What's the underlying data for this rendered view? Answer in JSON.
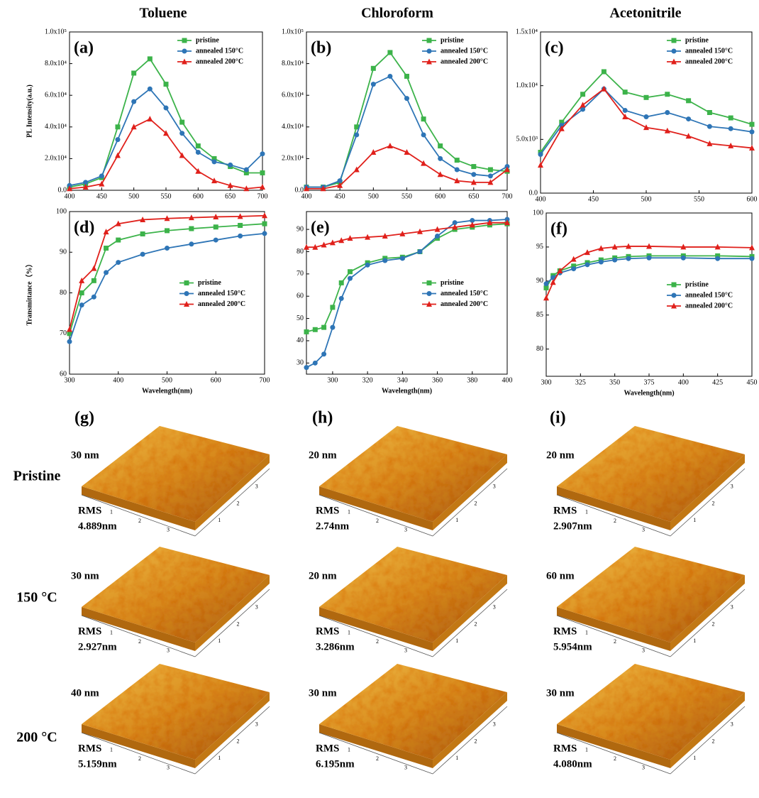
{
  "columns": [
    "Toluene",
    "Chloroform",
    "Acetonitrile"
  ],
  "chart_data": [
    {
      "type": "line",
      "label": "(a)",
      "y_label": "PL Intensity(a.u.)",
      "legend": "upper right",
      "xlim": [
        400,
        700
      ],
      "xticks": [
        400,
        450,
        500,
        550,
        600,
        650,
        700
      ],
      "ylim": [
        0,
        100000
      ],
      "yticks": [
        {
          "value": 0,
          "label": "0.0"
        },
        {
          "value": 20000,
          "label": "2.0x10⁴"
        },
        {
          "value": 40000,
          "label": "4.0x10⁴"
        },
        {
          "value": 60000,
          "label": "6.0x10⁴"
        },
        {
          "value": 80000,
          "label": "8.0x10⁴"
        },
        {
          "value": 100000,
          "label": "1.0x10⁵"
        }
      ],
      "x": [
        400,
        425,
        450,
        475,
        500,
        525,
        550,
        575,
        600,
        625,
        650,
        675,
        700
      ],
      "series": [
        {
          "name": "pristine",
          "color": "#3cb34a",
          "marker": "square",
          "values": [
            2000,
            4000,
            8000,
            40000,
            74000,
            83000,
            67000,
            43000,
            28000,
            20000,
            15000,
            11000,
            11000
          ]
        },
        {
          "name": "annealed 150°C",
          "color": "#2e75b6",
          "marker": "circle",
          "values": [
            3000,
            5000,
            9000,
            32000,
            56000,
            64000,
            52000,
            36000,
            24000,
            18000,
            16000,
            13000,
            23000
          ]
        },
        {
          "name": "annealed 200°C",
          "color": "#e0201b",
          "marker": "triangle",
          "values": [
            1000,
            2000,
            4000,
            22000,
            40000,
            45000,
            36000,
            22000,
            12000,
            6000,
            3000,
            1000,
            2000
          ]
        }
      ]
    },
    {
      "type": "line",
      "label": "(b)",
      "legend": "upper right",
      "xlim": [
        400,
        700
      ],
      "xticks": [
        400,
        450,
        500,
        550,
        600,
        650,
        700
      ],
      "ylim": [
        0,
        100000
      ],
      "yticks": [
        {
          "value": 0,
          "label": "0.0"
        },
        {
          "value": 20000,
          "label": "2.0x10⁴"
        },
        {
          "value": 40000,
          "label": "4.0x10⁴"
        },
        {
          "value": 60000,
          "label": "6.0x10⁴"
        },
        {
          "value": 80000,
          "label": "8.0x10⁴"
        },
        {
          "value": 100000,
          "label": "1.0x10⁵"
        }
      ],
      "x": [
        400,
        425,
        450,
        475,
        500,
        525,
        550,
        575,
        600,
        625,
        650,
        675,
        700
      ],
      "series": [
        {
          "name": "pristine",
          "color": "#3cb34a",
          "marker": "square",
          "values": [
            2000,
            2000,
            5000,
            40000,
            77000,
            87000,
            72000,
            45000,
            28000,
            19000,
            15000,
            13000,
            12000
          ]
        },
        {
          "name": "annealed 150°C",
          "color": "#2e75b6",
          "marker": "circle",
          "values": [
            2000,
            2000,
            6000,
            35000,
            67000,
            72000,
            58000,
            35000,
            20000,
            13000,
            10000,
            9000,
            15000
          ]
        },
        {
          "name": "annealed 200°C",
          "color": "#e0201b",
          "marker": "triangle",
          "values": [
            1000,
            1000,
            3000,
            13000,
            24000,
            28000,
            24000,
            17000,
            10000,
            6000,
            5000,
            5000,
            13000
          ]
        }
      ]
    },
    {
      "type": "line",
      "label": "(c)",
      "legend": "upper right",
      "xlim": [
        400,
        600
      ],
      "xticks": [
        400,
        450,
        500,
        550,
        600
      ],
      "ylim": [
        0,
        15000
      ],
      "yticks": [
        {
          "value": 0,
          "label": "0.0"
        },
        {
          "value": 5000,
          "label": "5.0x10³"
        },
        {
          "value": 10000,
          "label": "1.0x10⁴"
        },
        {
          "value": 15000,
          "label": "1.5x10⁴"
        }
      ],
      "x": [
        400,
        420,
        440,
        460,
        480,
        500,
        520,
        540,
        560,
        580,
        600
      ],
      "series": [
        {
          "name": "pristine",
          "color": "#3cb34a",
          "marker": "square",
          "values": [
            3800,
            6600,
            9200,
            11300,
            9400,
            8900,
            9200,
            8600,
            7500,
            7000,
            6400
          ]
        },
        {
          "name": "annealed 150°C",
          "color": "#2e75b6",
          "marker": "circle",
          "values": [
            3600,
            6300,
            7800,
            9700,
            7700,
            7100,
            7500,
            6900,
            6200,
            6000,
            5700
          ]
        },
        {
          "name": "annealed 200°C",
          "color": "#e0201b",
          "marker": "triangle",
          "values": [
            2600,
            6000,
            8200,
            9700,
            7100,
            6100,
            5800,
            5300,
            4600,
            4400,
            4200
          ]
        }
      ]
    },
    {
      "type": "line",
      "label": "(d)",
      "y_label": "Transmittance（%）",
      "x_label": "Wavelength(nm)",
      "legend": "center right",
      "xlim": [
        300,
        700
      ],
      "xticks": [
        300,
        400,
        500,
        600,
        700
      ],
      "ylim": [
        60,
        100
      ],
      "yticks": [
        60,
        70,
        80,
        90,
        100
      ],
      "x": [
        300,
        325,
        350,
        375,
        400,
        450,
        500,
        550,
        600,
        650,
        700
      ],
      "series": [
        {
          "name": "pristine",
          "color": "#3cb34a",
          "marker": "square",
          "values": [
            70,
            80,
            83,
            91,
            93,
            94.5,
            95.3,
            95.8,
            96.2,
            96.6,
            97
          ]
        },
        {
          "name": "annealed 150°C",
          "color": "#2e75b6",
          "marker": "circle",
          "values": [
            68,
            77,
            79,
            85,
            87.5,
            89.5,
            91,
            92,
            93,
            94,
            94.6
          ]
        },
        {
          "name": "annealed 200°C",
          "color": "#e0201b",
          "marker": "triangle",
          "values": [
            71,
            83,
            86,
            95,
            97,
            98,
            98.3,
            98.5,
            98.7,
            98.8,
            99
          ]
        }
      ]
    },
    {
      "type": "line",
      "label": "(e)",
      "x_label": "Wavelength(nm)",
      "legend": "center right",
      "xlim": [
        285,
        400
      ],
      "xticks": [
        300,
        320,
        340,
        360,
        380,
        400
      ],
      "ylim": [
        25,
        98
      ],
      "yticks": [
        30,
        40,
        50,
        60,
        70,
        80,
        90
      ],
      "x": [
        285,
        290,
        295,
        300,
        305,
        310,
        320,
        330,
        340,
        350,
        360,
        370,
        380,
        390,
        400
      ],
      "series": [
        {
          "name": "pristine",
          "color": "#3cb34a",
          "marker": "square",
          "values": [
            44,
            45,
            46,
            55,
            66,
            71,
            75,
            77,
            77.5,
            80,
            86,
            90,
            91,
            92,
            92.5
          ]
        },
        {
          "name": "annealed 150°C",
          "color": "#2e75b6",
          "marker": "circle",
          "values": [
            28,
            30,
            34,
            46,
            59,
            68,
            74,
            76,
            77,
            80,
            87,
            93,
            94,
            94,
            94.5
          ]
        },
        {
          "name": "annealed 200°C",
          "color": "#e0201b",
          "marker": "triangle",
          "values": [
            82,
            82,
            83,
            84,
            85,
            86,
            86.5,
            87,
            88,
            89,
            90,
            91,
            92,
            93,
            93
          ]
        }
      ]
    },
    {
      "type": "line",
      "label": "(f)",
      "x_label": "Wavelength(nm)",
      "legend": "center right",
      "xlim": [
        300,
        450
      ],
      "xticks": [
        300,
        325,
        350,
        375,
        400,
        425,
        450
      ],
      "ylim": [
        76,
        100
      ],
      "yticks": [
        80,
        85,
        90,
        95,
        100
      ],
      "x": [
        300,
        305,
        310,
        320,
        330,
        340,
        350,
        360,
        375,
        400,
        425,
        450
      ],
      "series": [
        {
          "name": "pristine",
          "color": "#3cb34a",
          "marker": "square",
          "values": [
            89,
            90.8,
            91.5,
            92.2,
            92.7,
            93.1,
            93.4,
            93.6,
            93.7,
            93.7,
            93.7,
            93.6
          ]
        },
        {
          "name": "annealed 150°C",
          "color": "#2e75b6",
          "marker": "circle",
          "values": [
            89.6,
            90.5,
            91.2,
            91.8,
            92.4,
            92.8,
            93.1,
            93.3,
            93.4,
            93.4,
            93.3,
            93.3
          ]
        },
        {
          "name": "annealed 200°C",
          "color": "#e0201b",
          "marker": "triangle",
          "values": [
            87.5,
            89.8,
            91.5,
            93.2,
            94.2,
            94.8,
            95.0,
            95.1,
            95.1,
            95.0,
            95.0,
            94.9
          ]
        }
      ]
    }
  ],
  "afm": {
    "panel_labels": [
      "(g)",
      "(h)",
      "(i)"
    ],
    "rows": [
      "Pristine",
      "150 °C",
      "200 °C"
    ],
    "rms_label": "RMS",
    "axis_ticks": [
      "1",
      "2",
      "3"
    ],
    "panels": [
      [
        {
          "height": "30 nm",
          "rms": "4.889nm"
        },
        {
          "height": "20 nm",
          "rms": "2.74nm"
        },
        {
          "height": "20 nm",
          "rms": "2.907nm"
        }
      ],
      [
        {
          "height": "30 nm",
          "rms": "2.927nm"
        },
        {
          "height": "20 nm",
          "rms": "3.286nm"
        },
        {
          "height": "60 nm",
          "rms": "5.954nm"
        }
      ],
      [
        {
          "height": "40 nm",
          "rms": "5.159nm"
        },
        {
          "height": "30 nm",
          "rms": "6.195nm"
        },
        {
          "height": "30 nm",
          "rms": "4.080nm"
        }
      ]
    ]
  }
}
